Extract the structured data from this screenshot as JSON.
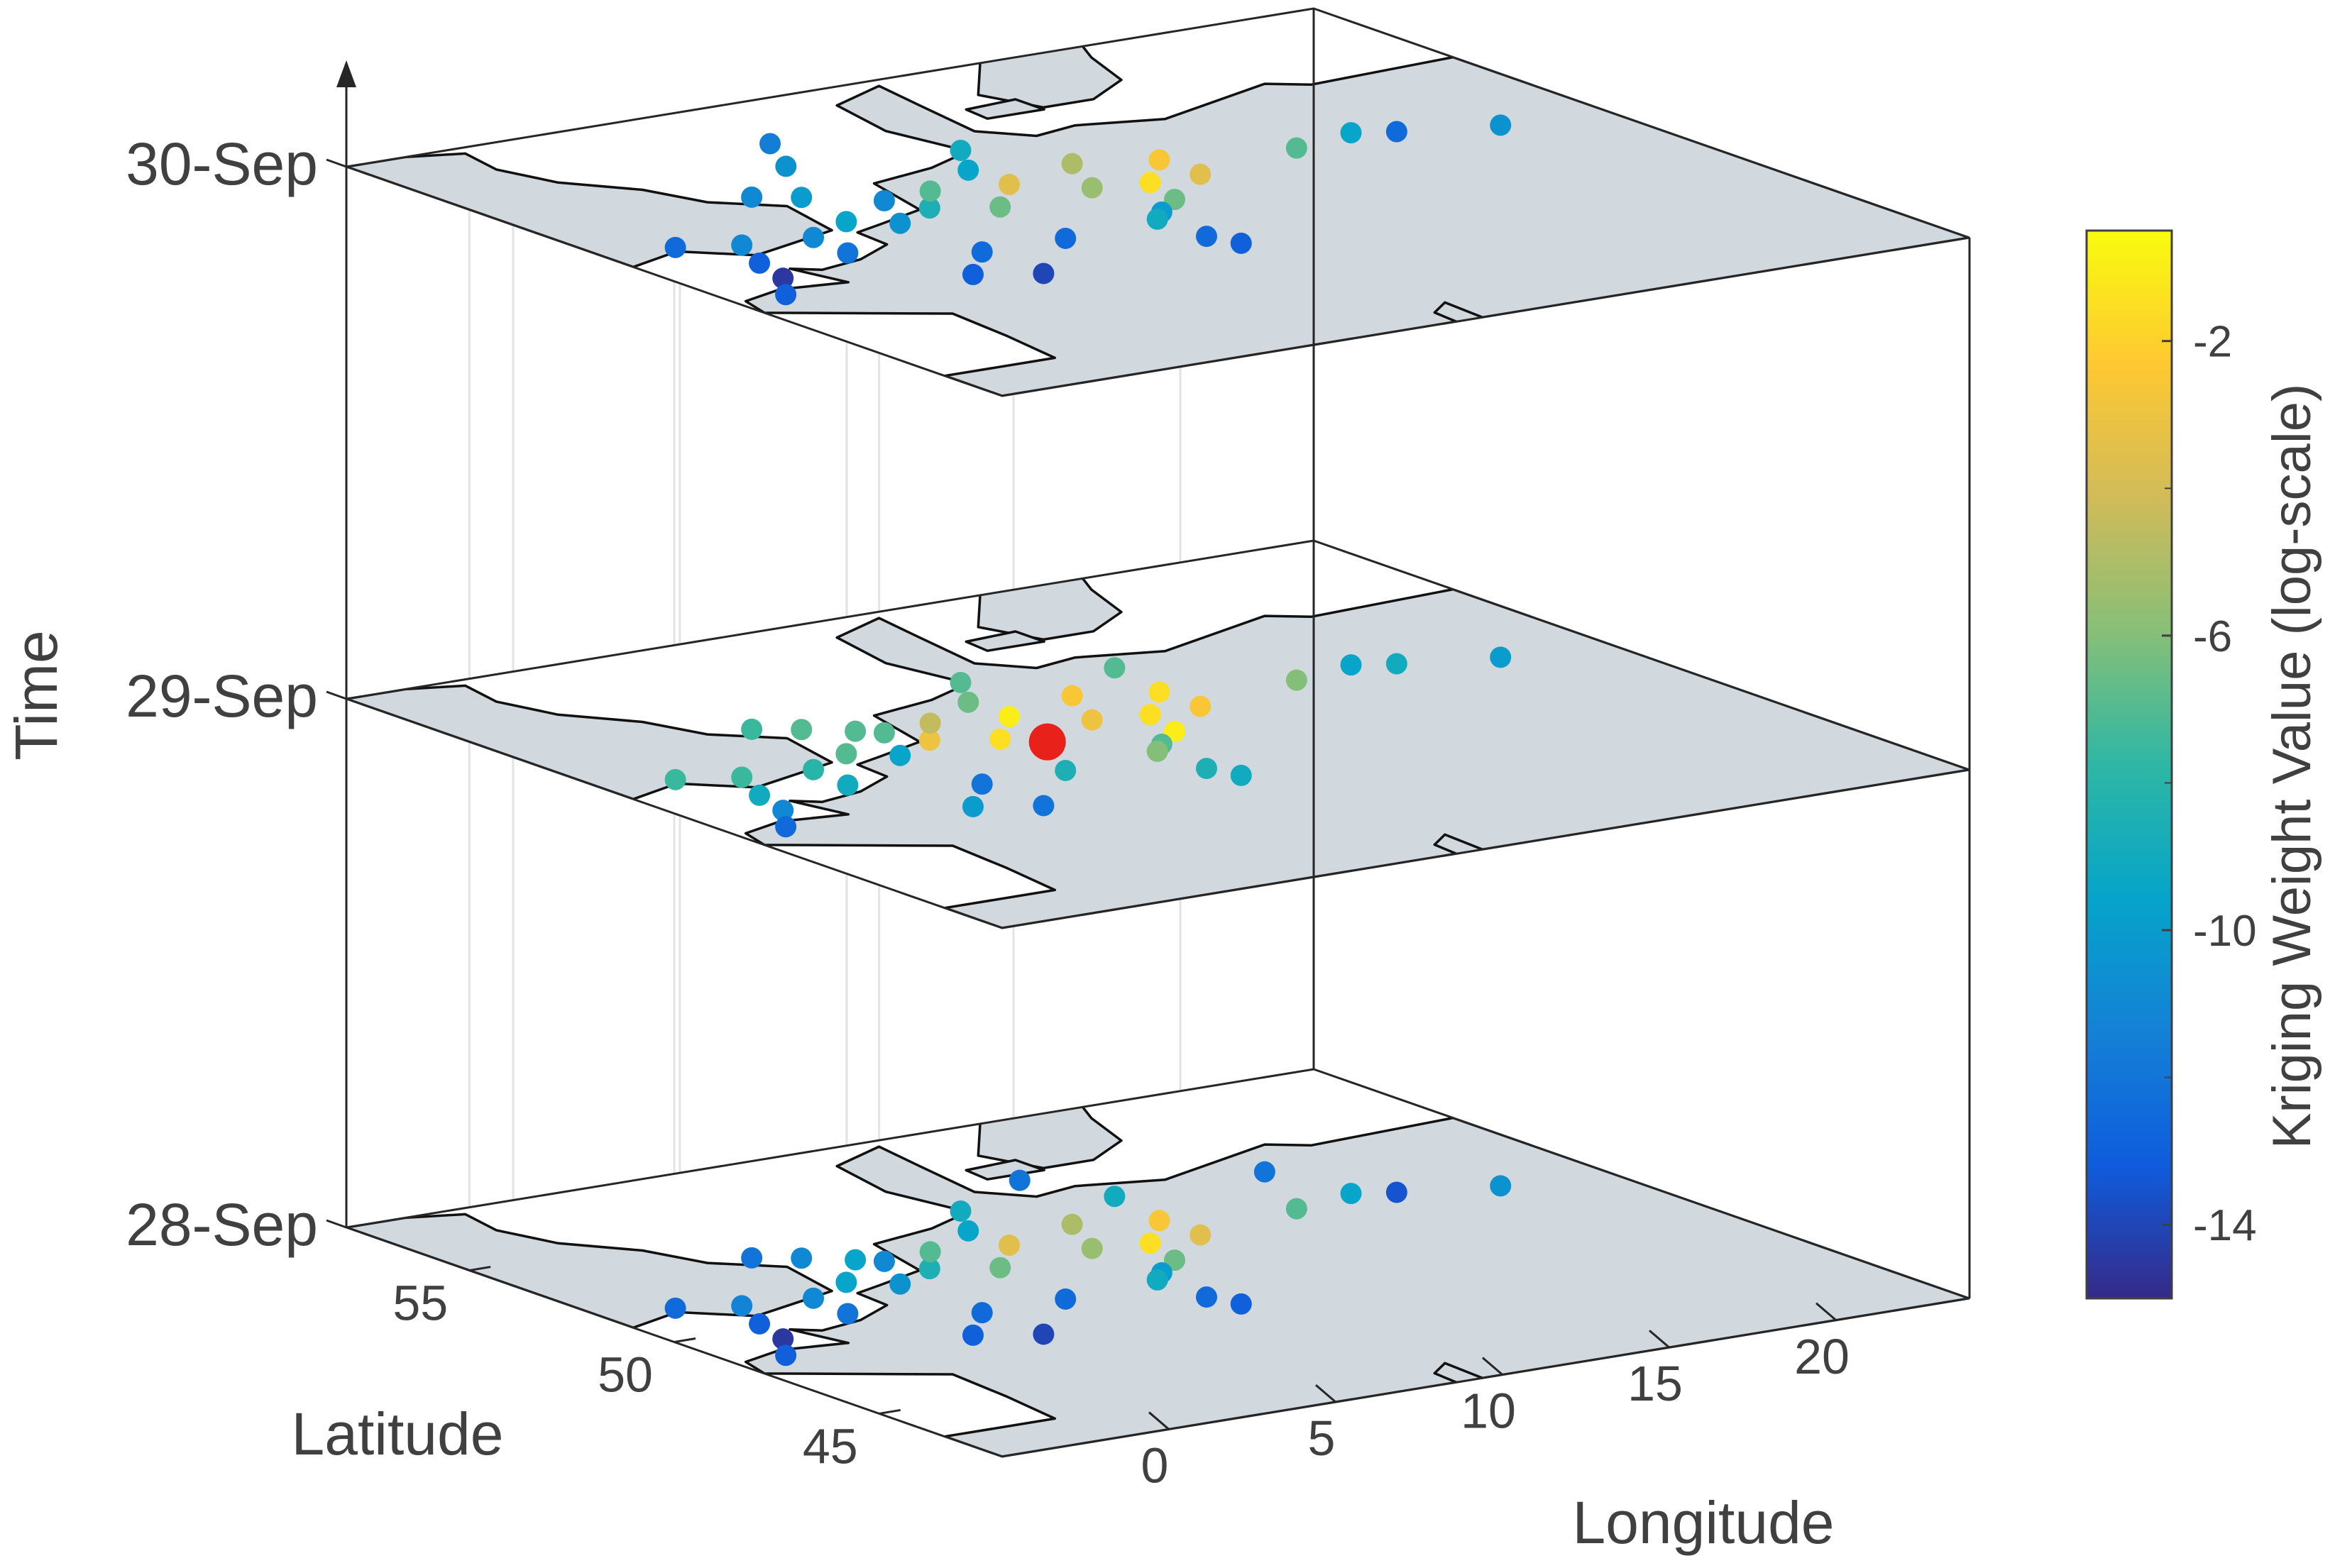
{
  "chart_data": {
    "type": "scatter",
    "layout": "3d-stacked-map-slices",
    "xlabel": "Longitude",
    "ylabel": "Latitude",
    "zlabel": "Time",
    "colorbar_label": "Kriging Weight Value (log-scale)",
    "x_ticks": [
      "0",
      "5",
      "10",
      "15",
      "20"
    ],
    "y_ticks": [
      "45",
      "50",
      "55"
    ],
    "z_ticks": [
      "28-Sep",
      "29-Sep",
      "30-Sep"
    ],
    "colorbar_ticks": [
      "-2",
      "-6",
      "-10",
      "-14"
    ],
    "xlim": [
      -5,
      24
    ],
    "ylim": [
      42,
      58
    ],
    "clim": [
      -15,
      -0.5
    ],
    "colormap": [
      "#352a87",
      "#0f5cdd",
      "#1481d6",
      "#06a4ca",
      "#2eb7a4",
      "#87bf77",
      "#d1bb59",
      "#fec832",
      "#f9fb0e"
    ],
    "map_fill": "#d1d9de",
    "target_marker": {
      "layer": "29-Sep",
      "lon": 6.8,
      "lat": 50.5,
      "color": "#e8211b"
    },
    "layers": [
      {
        "time": "28-Sep",
        "points": [
          {
            "lon": -3.0,
            "lat": 51.6,
            "w": -12.5
          },
          {
            "lon": -1.5,
            "lat": 51.2,
            "w": -11.2
          },
          {
            "lon": -2.2,
            "lat": 50.2,
            "w": -13.0
          },
          {
            "lon": -2.6,
            "lat": 49.3,
            "w": -14.5
          },
          {
            "lon": -3.5,
            "lat": 48.5,
            "w": -13.0
          },
          {
            "lon": 0.2,
            "lat": 50.0,
            "w": -12.0
          },
          {
            "lon": 0.4,
            "lat": 51.0,
            "w": -11.0
          },
          {
            "lon": 1.5,
            "lat": 53.4,
            "w": -12.0
          },
          {
            "lon": 2.5,
            "lat": 53.0,
            "w": -11.0
          },
          {
            "lon": 1.5,
            "lat": 48.0,
            "w": -13.0
          },
          {
            "lon": 2.0,
            "lat": 51.5,
            "w": -9.5
          },
          {
            "lon": 3.0,
            "lat": 51.0,
            "w": -10.5
          },
          {
            "lon": 3.0,
            "lat": 49.0,
            "w": -12.5
          },
          {
            "lon": 3.0,
            "lat": 47.5,
            "w": -14.0
          },
          {
            "lon": 4.0,
            "lat": 52.2,
            "w": -11.0
          },
          {
            "lon": 4.5,
            "lat": 51.5,
            "w": -8.5
          },
          {
            "lon": 3.5,
            "lat": 52.5,
            "w": -9.5
          },
          {
            "lon": 5.5,
            "lat": 52.3,
            "w": -7.0
          },
          {
            "lon": 6.0,
            "lat": 51.0,
            "w": -6.5
          },
          {
            "lon": 5.5,
            "lat": 49.0,
            "w": -12.5
          },
          {
            "lon": 7.5,
            "lat": 53.0,
            "w": -9.5
          },
          {
            "lon": 8.5,
            "lat": 54.0,
            "w": -9.0
          },
          {
            "lon": 7.5,
            "lat": 52.0,
            "w": -3.5
          },
          {
            "lon": 9.0,
            "lat": 51.2,
            "w": -5.5
          },
          {
            "lon": 10.0,
            "lat": 52.5,
            "w": -5.0
          },
          {
            "lon": 10.5,
            "lat": 51.0,
            "w": -1.5
          },
          {
            "lon": 12.0,
            "lat": 52.0,
            "w": -2.5
          },
          {
            "lon": 12.0,
            "lat": 51.0,
            "w": -3.5
          },
          {
            "lon": 10.0,
            "lat": 50.0,
            "w": -6.5
          },
          {
            "lon": 9.0,
            "lat": 49.5,
            "w": -10.0
          },
          {
            "lon": 8.5,
            "lat": 49.2,
            "w": -9.0
          },
          {
            "lon": 8.5,
            "lat": 48.0,
            "w": -12.5
          },
          {
            "lon": 8.8,
            "lat": 47.4,
            "w": -13.0
          },
          {
            "lon": 11.5,
            "lat": 55.0,
            "w": -12.0
          },
          {
            "lon": 12.5,
            "lat": 53.5,
            "w": -9.0
          },
          {
            "lon": 15.5,
            "lat": 51.5,
            "w": -7.0
          },
          {
            "lon": 17.0,
            "lat": 53.5,
            "w": -12.0
          },
          {
            "lon": 17.5,
            "lat": 51.8,
            "w": -9.5
          },
          {
            "lon": 18.5,
            "lat": 51.5,
            "w": -13.5
          },
          {
            "lon": 21.0,
            "lat": 51.0,
            "w": -10.5
          }
        ]
      },
      {
        "time": "29-Sep",
        "points": [
          {
            "lon": -3.0,
            "lat": 51.6,
            "w": -7.5
          },
          {
            "lon": -1.5,
            "lat": 51.2,
            "w": -7.5
          },
          {
            "lon": -2.2,
            "lat": 50.2,
            "w": -9.0
          },
          {
            "lon": -2.6,
            "lat": 49.3,
            "w": -11.0
          },
          {
            "lon": -3.5,
            "lat": 48.5,
            "w": -12.5
          },
          {
            "lon": 0.2,
            "lat": 50.0,
            "w": -9.0
          },
          {
            "lon": 0.4,
            "lat": 51.0,
            "w": -8.0
          },
          {
            "lon": 1.5,
            "lat": 53.4,
            "w": -7.5
          },
          {
            "lon": 2.5,
            "lat": 53.0,
            "w": -7.0
          },
          {
            "lon": 1.5,
            "lat": 48.0,
            "w": -10.0
          },
          {
            "lon": 2.0,
            "lat": 51.5,
            "w": -7.0
          },
          {
            "lon": 3.0,
            "lat": 51.0,
            "w": -9.5
          },
          {
            "lon": 3.0,
            "lat": 49.0,
            "w": -12.0
          },
          {
            "lon": 3.0,
            "lat": 47.5,
            "w": -12.0
          },
          {
            "lon": 4.0,
            "lat": 52.2,
            "w": -7.0
          },
          {
            "lon": 4.5,
            "lat": 51.5,
            "w": -3.0
          },
          {
            "lon": 3.5,
            "lat": 52.5,
            "w": -7.0
          },
          {
            "lon": 5.5,
            "lat": 52.3,
            "w": -4.5
          },
          {
            "lon": 6.0,
            "lat": 51.0,
            "w": -1.5
          },
          {
            "lon": 5.5,
            "lat": 49.0,
            "w": -8.5
          },
          {
            "lon": 7.5,
            "lat": 53.0,
            "w": -6.5
          },
          {
            "lon": 8.5,
            "lat": 54.0,
            "w": -7.0
          },
          {
            "lon": 7.5,
            "lat": 52.0,
            "w": -1.0
          },
          {
            "lon": 9.0,
            "lat": 51.2,
            "w": -3.0
          },
          {
            "lon": 10.0,
            "lat": 52.5,
            "w": -2.5
          },
          {
            "lon": 10.5,
            "lat": 51.0,
            "w": -1.5
          },
          {
            "lon": 12.0,
            "lat": 52.0,
            "w": -1.5
          },
          {
            "lon": 12.0,
            "lat": 51.0,
            "w": -2.5
          },
          {
            "lon": 10.0,
            "lat": 50.0,
            "w": -1.0
          },
          {
            "lon": 9.0,
            "lat": 49.5,
            "w": -7.0
          },
          {
            "lon": 8.5,
            "lat": 49.2,
            "w": -6.0
          },
          {
            "lon": 8.5,
            "lat": 48.0,
            "w": -8.5
          },
          {
            "lon": 8.8,
            "lat": 47.4,
            "w": -9.0
          },
          {
            "lon": 12.5,
            "lat": 53.5,
            "w": -7.0
          },
          {
            "lon": 15.5,
            "lat": 51.5,
            "w": -6.0
          },
          {
            "lon": 17.5,
            "lat": 51.8,
            "w": -9.5
          },
          {
            "lon": 18.5,
            "lat": 51.5,
            "w": -9.0
          },
          {
            "lon": 21.0,
            "lat": 51.0,
            "w": -10.0
          }
        ]
      },
      {
        "time": "30-Sep",
        "points": [
          {
            "lon": -3.0,
            "lat": 51.6,
            "w": -12.5
          },
          {
            "lon": -1.5,
            "lat": 51.2,
            "w": -11.0
          },
          {
            "lon": -2.2,
            "lat": 50.2,
            "w": -13.0
          },
          {
            "lon": -2.6,
            "lat": 49.3,
            "w": -14.5
          },
          {
            "lon": -3.5,
            "lat": 48.5,
            "w": -13.0
          },
          {
            "lon": 0.2,
            "lat": 50.0,
            "w": -12.0
          },
          {
            "lon": 0.4,
            "lat": 51.0,
            "w": -11.0
          },
          {
            "lon": 1.5,
            "lat": 53.4,
            "w": -11.0
          },
          {
            "lon": 2.5,
            "lat": 53.0,
            "w": -10.0
          },
          {
            "lon": 1.5,
            "lat": 48.0,
            "w": -13.0
          },
          {
            "lon": 2.0,
            "lat": 51.5,
            "w": -9.5
          },
          {
            "lon": 3.0,
            "lat": 51.0,
            "w": -10.5
          },
          {
            "lon": 3.0,
            "lat": 49.0,
            "w": -12.5
          },
          {
            "lon": 3.0,
            "lat": 47.5,
            "w": -14.0
          },
          {
            "lon": 4.0,
            "lat": 52.2,
            "w": -11.0
          },
          {
            "lon": 4.5,
            "lat": 51.5,
            "w": -8.5
          },
          {
            "lon": 4.0,
            "lat": 54.6,
            "w": -10.5
          },
          {
            "lon": 5.5,
            "lat": 52.3,
            "w": -7.0
          },
          {
            "lon": 6.0,
            "lat": 51.0,
            "w": -6.5
          },
          {
            "lon": 5.5,
            "lat": 49.0,
            "w": -12.5
          },
          {
            "lon": 7.5,
            "lat": 53.0,
            "w": -9.5
          },
          {
            "lon": 8.5,
            "lat": 54.0,
            "w": -9.0
          },
          {
            "lon": 7.5,
            "lat": 52.0,
            "w": -3.5
          },
          {
            "lon": 9.0,
            "lat": 51.2,
            "w": -5.5
          },
          {
            "lon": 10.0,
            "lat": 52.5,
            "w": -5.0
          },
          {
            "lon": 10.5,
            "lat": 51.0,
            "w": -1.5
          },
          {
            "lon": 12.0,
            "lat": 52.0,
            "w": -2.5
          },
          {
            "lon": 12.0,
            "lat": 51.0,
            "w": -3.5
          },
          {
            "lon": 10.0,
            "lat": 50.0,
            "w": -6.5
          },
          {
            "lon": 9.0,
            "lat": 49.5,
            "w": -10.0
          },
          {
            "lon": 8.5,
            "lat": 49.2,
            "w": -9.0
          },
          {
            "lon": 8.5,
            "lat": 48.0,
            "w": -12.5
          },
          {
            "lon": 8.8,
            "lat": 47.4,
            "w": -13.0
          },
          {
            "lon": 5.0,
            "lat": 55.8,
            "w": -11.5
          },
          {
            "lon": 15.5,
            "lat": 51.5,
            "w": -7.0
          },
          {
            "lon": 17.5,
            "lat": 51.8,
            "w": -9.5
          },
          {
            "lon": 18.5,
            "lat": 51.5,
            "w": -12.5
          },
          {
            "lon": 21.0,
            "lat": 51.0,
            "w": -10.5
          }
        ]
      }
    ]
  }
}
